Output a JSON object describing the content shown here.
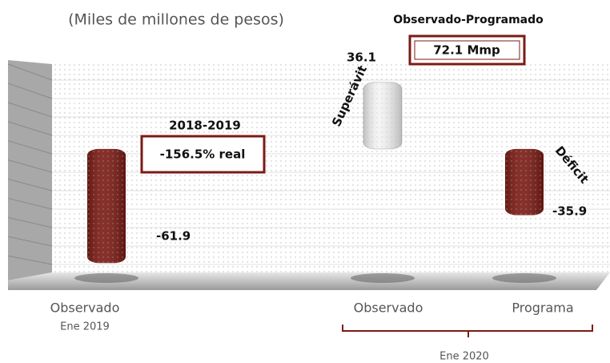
{
  "chart_data": {
    "type": "bar",
    "title": "(Miles de millones de pesos)",
    "categories": [
      "Observado",
      "Observado",
      "Programa"
    ],
    "group_labels": [
      "Ene 2019",
      "Ene 2020"
    ],
    "values": [
      -61.9,
      36.1,
      -35.9
    ],
    "colors": [
      "#7b1b14",
      "#f4f4f4",
      "#7b1b14"
    ],
    "ylim": [
      -67,
      46
    ],
    "annotations": [
      "2018-2019",
      "-156.5% real",
      "Observado-Programado",
      "72.1 Mmp",
      "Superávit",
      "Déficit"
    ]
  }
}
